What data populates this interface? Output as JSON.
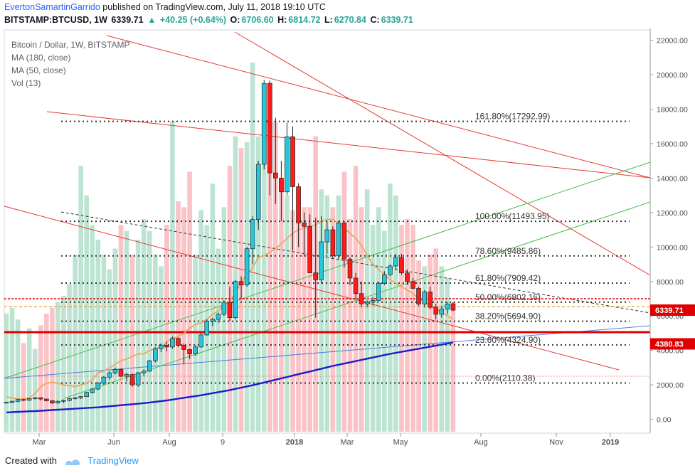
{
  "header": {
    "author": "EvertonSamartinGarrido",
    "published_text": "published on TradingView.com, July 11, 2018 19:10 UTC"
  },
  "symbol_bar": {
    "symbol": "BITSTAMP:BTCUSD, 1W",
    "last": "6339.71",
    "change": "+40.25 (+0.64%)",
    "open_label": "O:",
    "open": "6706.60",
    "high_label": "H:",
    "high": "6814.72",
    "low_label": "L:",
    "low": "6270.84",
    "close_label": "C:",
    "close": "6339.71"
  },
  "legend": {
    "title": "Bitcoin / Dollar, 1W, BITSTAMP",
    "ma180": "MA (180, close)",
    "ma50": "MA (50, close)",
    "vol": "Vol (13)"
  },
  "footer": {
    "created_with": "Created with",
    "brand": "TradingView"
  },
  "colors": {
    "up": "#26a69a",
    "down": "#ef5350",
    "candle_up_fill": "#26c6da",
    "candle_down_fill": "#ff1a1a",
    "vol_up": "#b2dfcb",
    "vol_down": "#f8b9bd",
    "ma50": "#f4a460",
    "ma180": "#1c1cc8",
    "channel": "#e53935",
    "green_lines": "#4caf50",
    "fib": "#333333"
  },
  "chart_data": {
    "type": "candlestick",
    "title": "Bitcoin / Dollar, 1W, BITSTAMP",
    "ylim": [
      -800,
      22600
    ],
    "y_ticks": [
      0,
      2000,
      4000,
      6000,
      8000,
      10000,
      12000,
      14000,
      16000,
      18000,
      20000,
      22000
    ],
    "y_tick_labels": [
      "0.00",
      "2000.00",
      "4000.00",
      "6000.00",
      "8000.00",
      "10000.00",
      "12000.00",
      "14000.00",
      "16000.00",
      "18000.00",
      "20000.00",
      "22000.00"
    ],
    "x_tick_labels": [
      "Mar",
      "Jun",
      "Aug",
      "9",
      "2018",
      "Mar",
      "May",
      "Aug",
      "Nov",
      "2019"
    ],
    "fib_levels": [
      {
        "label": "161.80%(17292.99)",
        "value": 17292.99
      },
      {
        "label": "100.00%(11493.95)",
        "value": 11493.95
      },
      {
        "label": "78.60%(9485.86)",
        "value": 9485.86
      },
      {
        "label": "61.80%(7909.42)",
        "value": 7909.42
      },
      {
        "label": "50.00%(6802.16)",
        "value": 6802.16
      },
      {
        "label": "38.20%(5694.90)",
        "value": 5694.9
      },
      {
        "label": "23.60%(4324.90)",
        "value": 4324.9
      },
      {
        "label": "0.00%(2110.38)",
        "value": 2110.38
      }
    ],
    "price_tags": [
      {
        "label": "6339.71",
        "value": 6339.71
      },
      {
        "label": "4380.83",
        "value": 4380.83
      }
    ],
    "candles": [
      [
        960,
        1000,
        900,
        990
      ],
      [
        990,
        1080,
        950,
        1050
      ],
      [
        1050,
        1200,
        1000,
        1150
      ],
      [
        1150,
        1200,
        1050,
        1120
      ],
      [
        1120,
        1250,
        1080,
        1200
      ],
      [
        1200,
        1280,
        1150,
        1260
      ],
      [
        1260,
        1280,
        1100,
        1180
      ],
      [
        1180,
        1200,
        1050,
        1080
      ],
      [
        1080,
        1130,
        900,
        950
      ],
      [
        950,
        1100,
        900,
        1050
      ],
      [
        1050,
        1150,
        960,
        1100
      ],
      [
        1100,
        1250,
        1050,
        1200
      ],
      [
        1200,
        1300,
        1150,
        1250
      ],
      [
        1250,
        1350,
        1180,
        1320
      ],
      [
        1320,
        1600,
        1300,
        1560
      ],
      [
        1560,
        1800,
        1500,
        1760
      ],
      [
        1760,
        2150,
        1700,
        2100
      ],
      [
        2100,
        2500,
        2000,
        2450
      ],
      [
        2450,
        2800,
        2300,
        2700
      ],
      [
        2700,
        3000,
        2600,
        2900
      ],
      [
        2900,
        2950,
        2450,
        2500
      ],
      [
        2500,
        2700,
        2200,
        2600
      ],
      [
        2600,
        2650,
        1900,
        2000
      ],
      [
        2000,
        2750,
        1900,
        2700
      ],
      [
        2700,
        2900,
        2500,
        2800
      ],
      [
        2800,
        3450,
        2750,
        3400
      ],
      [
        3400,
        4200,
        3300,
        4100
      ],
      [
        4100,
        4400,
        3900,
        4300
      ],
      [
        4300,
        4500,
        3950,
        4200
      ],
      [
        4200,
        4800,
        4100,
        4700
      ],
      [
        4700,
        4750,
        4200,
        4300
      ],
      [
        4300,
        4400,
        3200,
        4050
      ],
      [
        4050,
        4100,
        3500,
        3800
      ],
      [
        3800,
        4300,
        3700,
        4200
      ],
      [
        4200,
        5000,
        4150,
        4900
      ],
      [
        4900,
        5800,
        4850,
        5700
      ],
      [
        5700,
        5900,
        5400,
        5800
      ],
      [
        5800,
        6200,
        5600,
        6100
      ],
      [
        6100,
        6900,
        6000,
        6800
      ],
      [
        6800,
        7700,
        5700,
        5900
      ],
      [
        5900,
        8100,
        5800,
        8000
      ],
      [
        8000,
        8300,
        7000,
        7800
      ],
      [
        7800,
        10000,
        7700,
        9900
      ],
      [
        9900,
        11800,
        9000,
        11600
      ],
      [
        11600,
        15000,
        11000,
        14800
      ],
      [
        14800,
        19700,
        14500,
        19500
      ],
      [
        19500,
        19650,
        13000,
        14300
      ],
      [
        14300,
        17500,
        12500,
        14000
      ],
      [
        14000,
        15000,
        11500,
        13200
      ],
      [
        13200,
        17200,
        13000,
        16400
      ],
      [
        16400,
        17000,
        9800,
        13500
      ],
      [
        13500,
        13700,
        10000,
        11400
      ],
      [
        11400,
        12000,
        9500,
        11200
      ],
      [
        11200,
        11900,
        8500,
        8500
      ],
      [
        8500,
        11700,
        5900,
        8100
      ],
      [
        8100,
        11800,
        7900,
        10300
      ],
      [
        10300,
        11500,
        9600,
        11000
      ],
      [
        11000,
        11200,
        9300,
        9500
      ],
      [
        9500,
        11500,
        9300,
        11400
      ],
      [
        11400,
        11500,
        8800,
        9300
      ],
      [
        9300,
        9400,
        7800,
        8200
      ],
      [
        8200,
        8500,
        7000,
        7300
      ],
      [
        7300,
        8000,
        6500,
        6700
      ],
      [
        6700,
        6900,
        6500,
        6800
      ],
      [
        6800,
        7100,
        6600,
        6900
      ],
      [
        6900,
        8000,
        6900,
        7900
      ],
      [
        7900,
        8600,
        7800,
        8400
      ],
      [
        8400,
        9000,
        8300,
        8900
      ],
      [
        8900,
        9600,
        8700,
        9400
      ],
      [
        9400,
        9600,
        8400,
        8500
      ],
      [
        8500,
        8700,
        7800,
        8000
      ],
      [
        8000,
        8200,
        7600,
        7600
      ],
      [
        7600,
        7700,
        6600,
        6700
      ],
      [
        6700,
        7500,
        6500,
        7400
      ],
      [
        7400,
        7700,
        6400,
        6500
      ],
      [
        6500,
        6700,
        5800,
        6100
      ],
      [
        6100,
        6600,
        5900,
        6400
      ],
      [
        6400,
        6800,
        6100,
        6700
      ],
      [
        6706.6,
        6814.72,
        6270.84,
        6339.71
      ]
    ],
    "volume": [
      400,
      420,
      380,
      300,
      350,
      280,
      360,
      400,
      420,
      440,
      460,
      500,
      600,
      900,
      800,
      700,
      650,
      600,
      550,
      620,
      700,
      680,
      600,
      650,
      720,
      680,
      600,
      560,
      700,
      1050,
      780,
      760,
      880,
      600,
      750,
      700,
      840,
      620,
      760,
      900,
      1000,
      960,
      980,
      1250,
      1000,
      1050,
      950,
      1050,
      850,
      800,
      750,
      720,
      760,
      760,
      1000,
      820,
      800,
      760,
      800,
      880,
      720,
      900,
      760,
      820,
      700,
      760,
      680,
      840,
      800,
      700,
      720,
      700,
      580,
      560,
      600,
      620,
      560,
      520,
      440
    ],
    "ma50": [
      1300,
      1250,
      1200,
      1180,
      1250,
      1500,
      1900,
      2100,
      2150,
      2100,
      2000,
      1950,
      1900,
      2000,
      2100,
      2300,
      2700,
      2800,
      3000,
      3200,
      3400,
      3500,
      3650,
      3800,
      3800,
      4000,
      4100,
      4200,
      4500,
      4700,
      4800,
      5000,
      5300,
      5500,
      5600,
      5800,
      6100,
      6300,
      6600,
      6900,
      7300,
      8000,
      8400,
      8800,
      9400,
      9500,
      9700,
      9900,
      10200,
      10500,
      10800,
      11000,
      11100,
      11200,
      11300,
      11500,
      11600,
      11600,
      11400,
      11100,
      10800,
      10500,
      10100,
      9500,
      9000,
      8700,
      8400,
      8100,
      7900,
      7700,
      7500,
      7300,
      7000,
      6800,
      6600,
      6400,
      6200,
      6000,
      5800
    ],
    "ma180": [
      400,
      420,
      440,
      450,
      470,
      480,
      500,
      520,
      540,
      560,
      580,
      600,
      620,
      640,
      660,
      680,
      700,
      730,
      760,
      790,
      820,
      850,
      880,
      910,
      940,
      980,
      1020,
      1060,
      1100,
      1150,
      1200,
      1250,
      1300,
      1350,
      1400,
      1460,
      1520,
      1580,
      1640,
      1700,
      1770,
      1840,
      1910,
      1980,
      2060,
      2140,
      2220,
      2300,
      2380,
      2460,
      2540,
      2620,
      2700,
      2780,
      2860,
      2940,
      3020,
      3100,
      3170,
      3240,
      3310,
      3380,
      3450,
      3520,
      3590,
      3660,
      3730,
      3800,
      3860,
      3920,
      3980,
      4040,
      4100,
      4160,
      4220,
      4280,
      4340,
      4400,
      4460
    ]
  }
}
